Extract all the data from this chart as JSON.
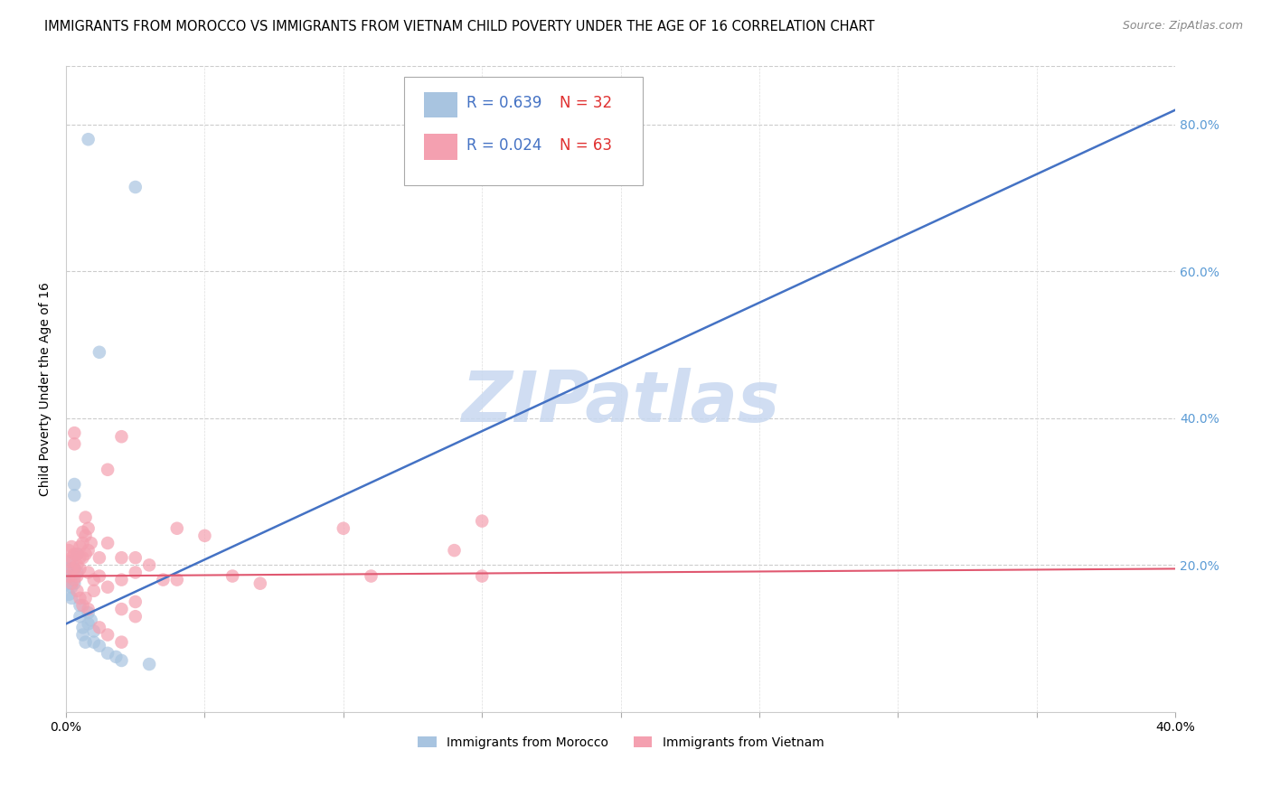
{
  "title": "IMMIGRANTS FROM MOROCCO VS IMMIGRANTS FROM VIETNAM CHILD POVERTY UNDER THE AGE OF 16 CORRELATION CHART",
  "source": "Source: ZipAtlas.com",
  "ylabel": "Child Poverty Under the Age of 16",
  "xmin": 0.0,
  "xmax": 0.4,
  "ymin": 0.0,
  "ymax": 0.88,
  "morocco_color": "#a8c4e0",
  "vietnam_color": "#f4a0b0",
  "blue_line_color": "#4472c4",
  "pink_line_color": "#e05870",
  "right_axis_color": "#5b9bd5",
  "watermark": "ZIPatlas",
  "watermark_color": "#c8d8f0",
  "morocco_scatter": [
    [
      0.001,
      0.175
    ],
    [
      0.001,
      0.195
    ],
    [
      0.001,
      0.185
    ],
    [
      0.001,
      0.16
    ],
    [
      0.002,
      0.205
    ],
    [
      0.002,
      0.19
    ],
    [
      0.002,
      0.17
    ],
    [
      0.002,
      0.155
    ],
    [
      0.003,
      0.31
    ],
    [
      0.003,
      0.295
    ],
    [
      0.003,
      0.195
    ],
    [
      0.003,
      0.175
    ],
    [
      0.004,
      0.215
    ],
    [
      0.004,
      0.19
    ],
    [
      0.005,
      0.145
    ],
    [
      0.005,
      0.13
    ],
    [
      0.006,
      0.115
    ],
    [
      0.006,
      0.105
    ],
    [
      0.007,
      0.095
    ],
    [
      0.008,
      0.135
    ],
    [
      0.008,
      0.12
    ],
    [
      0.009,
      0.125
    ],
    [
      0.01,
      0.11
    ],
    [
      0.01,
      0.095
    ],
    [
      0.012,
      0.09
    ],
    [
      0.015,
      0.08
    ],
    [
      0.018,
      0.075
    ],
    [
      0.02,
      0.07
    ],
    [
      0.012,
      0.49
    ],
    [
      0.025,
      0.715
    ],
    [
      0.008,
      0.78
    ],
    [
      0.03,
      0.065
    ]
  ],
  "vietnam_scatter": [
    [
      0.001,
      0.22
    ],
    [
      0.001,
      0.205
    ],
    [
      0.001,
      0.185
    ],
    [
      0.002,
      0.225
    ],
    [
      0.002,
      0.21
    ],
    [
      0.002,
      0.195
    ],
    [
      0.002,
      0.175
    ],
    [
      0.003,
      0.38
    ],
    [
      0.003,
      0.365
    ],
    [
      0.003,
      0.215
    ],
    [
      0.003,
      0.195
    ],
    [
      0.003,
      0.18
    ],
    [
      0.004,
      0.215
    ],
    [
      0.004,
      0.2
    ],
    [
      0.004,
      0.185
    ],
    [
      0.004,
      0.165
    ],
    [
      0.005,
      0.225
    ],
    [
      0.005,
      0.21
    ],
    [
      0.005,
      0.195
    ],
    [
      0.005,
      0.155
    ],
    [
      0.006,
      0.245
    ],
    [
      0.006,
      0.23
    ],
    [
      0.006,
      0.21
    ],
    [
      0.006,
      0.145
    ],
    [
      0.007,
      0.265
    ],
    [
      0.007,
      0.24
    ],
    [
      0.007,
      0.215
    ],
    [
      0.007,
      0.155
    ],
    [
      0.008,
      0.25
    ],
    [
      0.008,
      0.22
    ],
    [
      0.008,
      0.19
    ],
    [
      0.008,
      0.14
    ],
    [
      0.009,
      0.23
    ],
    [
      0.01,
      0.18
    ],
    [
      0.01,
      0.165
    ],
    [
      0.012,
      0.21
    ],
    [
      0.012,
      0.185
    ],
    [
      0.012,
      0.115
    ],
    [
      0.015,
      0.33
    ],
    [
      0.015,
      0.23
    ],
    [
      0.015,
      0.17
    ],
    [
      0.015,
      0.105
    ],
    [
      0.02,
      0.375
    ],
    [
      0.02,
      0.21
    ],
    [
      0.02,
      0.18
    ],
    [
      0.02,
      0.14
    ],
    [
      0.02,
      0.095
    ],
    [
      0.025,
      0.21
    ],
    [
      0.025,
      0.19
    ],
    [
      0.025,
      0.15
    ],
    [
      0.025,
      0.13
    ],
    [
      0.03,
      0.2
    ],
    [
      0.035,
      0.18
    ],
    [
      0.04,
      0.25
    ],
    [
      0.04,
      0.18
    ],
    [
      0.05,
      0.24
    ],
    [
      0.06,
      0.185
    ],
    [
      0.07,
      0.175
    ],
    [
      0.1,
      0.25
    ],
    [
      0.11,
      0.185
    ],
    [
      0.14,
      0.22
    ],
    [
      0.15,
      0.26
    ],
    [
      0.15,
      0.185
    ]
  ],
  "morocco_line_x": [
    0.0,
    0.4
  ],
  "morocco_line_y": [
    0.12,
    0.82
  ],
  "vietnam_line_x": [
    0.0,
    0.4
  ],
  "vietnam_line_y": [
    0.185,
    0.195
  ],
  "title_fontsize": 10.5,
  "axis_label_fontsize": 10,
  "tick_fontsize": 10,
  "legend_fontsize": 12
}
